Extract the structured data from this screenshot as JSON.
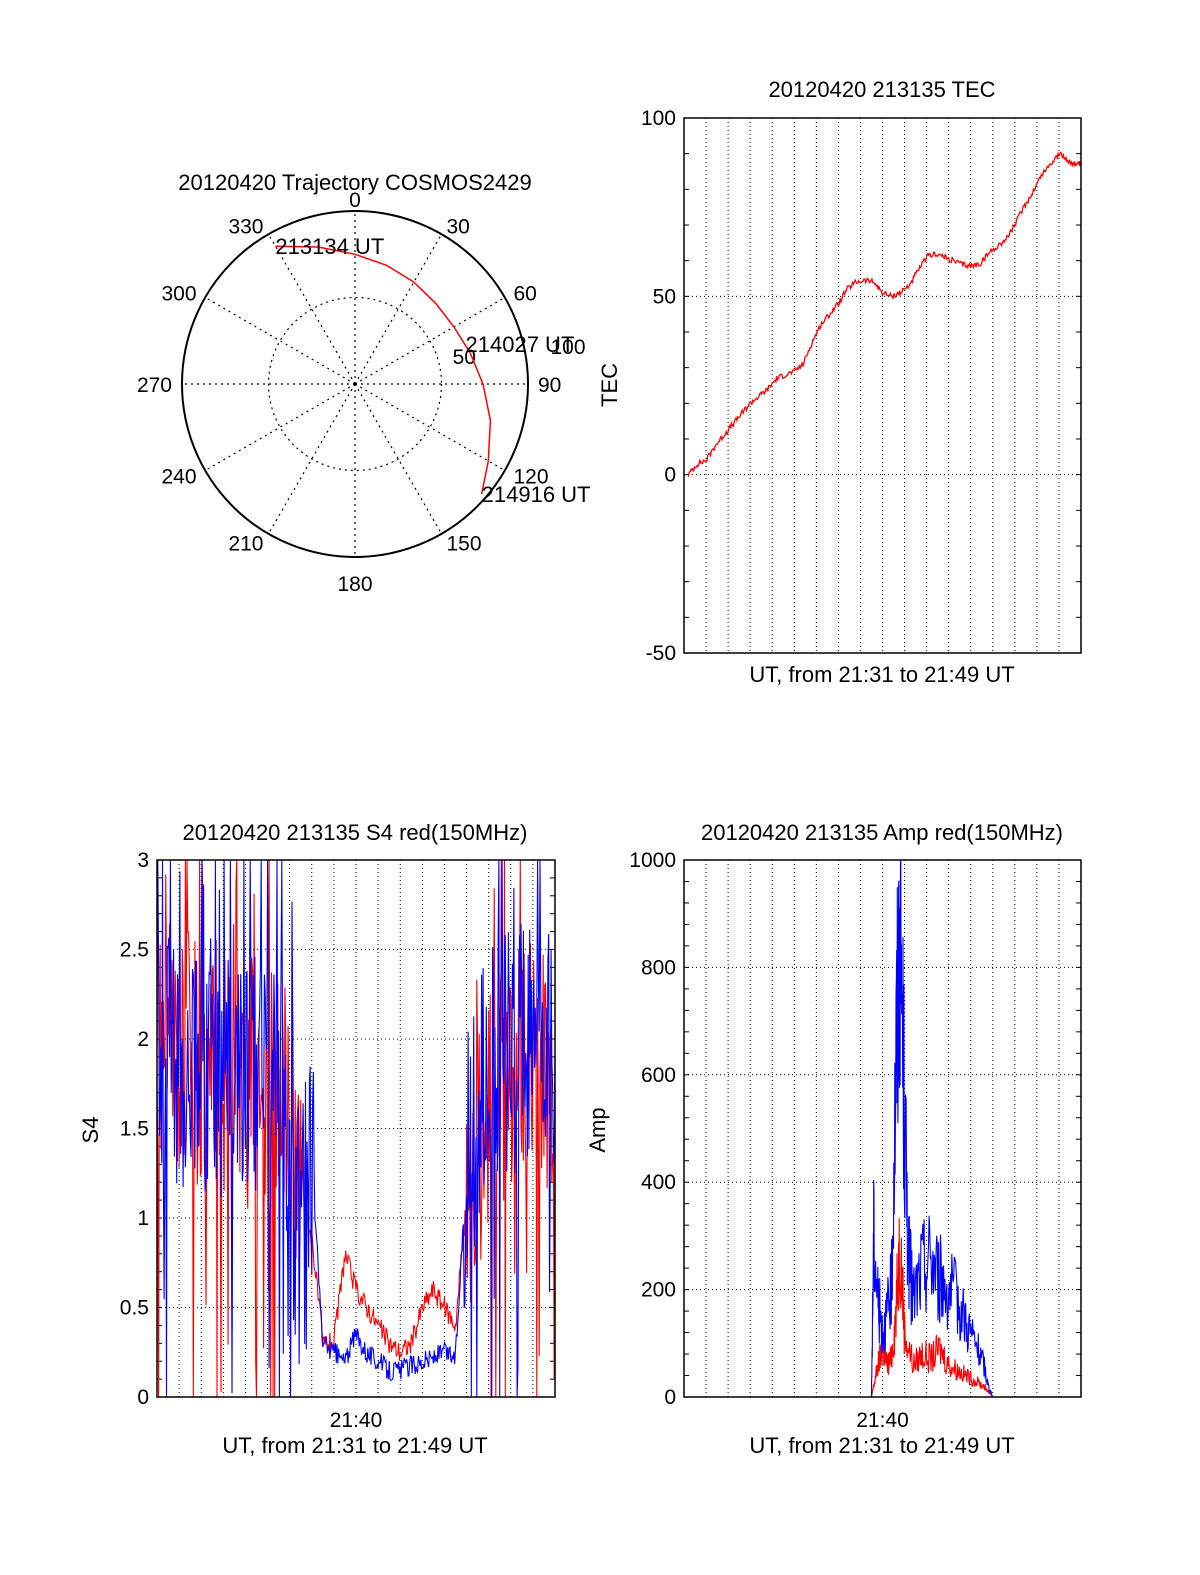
{
  "chart_data": [
    {
      "type": "polar",
      "id": "trajectory",
      "title": "20120420 Trajectory COSMOS2429",
      "angle_labels": [
        "0",
        "30",
        "60",
        "90",
        "120",
        "150",
        "180",
        "210",
        "240",
        "270",
        "300",
        "330"
      ],
      "radial_tick_labels": [
        "50",
        "100"
      ],
      "r_max": 100,
      "series": [
        {
          "color": "#ff0000",
          "points_az_zenith": [
            [
              330,
              92
            ],
            [
              345,
              82
            ],
            [
              0,
              75
            ],
            [
              15,
              71
            ],
            [
              30,
              68
            ],
            [
              45,
              66
            ],
            [
              60,
              66
            ],
            [
              75,
              69
            ],
            [
              90,
              74
            ],
            [
              105,
              81
            ],
            [
              120,
              89
            ],
            [
              131,
              97
            ]
          ]
        }
      ],
      "annotations": [
        {
          "text": "213134 UT",
          "az": 330,
          "zen": 92
        },
        {
          "text": "214027 UT",
          "az": 70,
          "zen": 68
        },
        {
          "text": "214916 UT",
          "az": 131,
          "zen": 97
        }
      ]
    },
    {
      "type": "line",
      "id": "tec",
      "title": "20120420 213135 TEC",
      "xlabel": "UT, from 21:31 to 21:49 UT",
      "ylabel": "TEC",
      "xlim": [
        0,
        18
      ],
      "ylim": [
        -50,
        100
      ],
      "yticks": [
        "-50",
        "0",
        "50",
        "100"
      ],
      "grid": true,
      "series": [
        {
          "color": "#ff0000",
          "x": [
            0.2,
            0.6,
            1.0,
            1.4,
            1.8,
            2.2,
            2.6,
            3.0,
            3.4,
            3.8,
            4.2,
            4.6,
            5.0,
            5.4,
            5.8,
            6.2,
            6.6,
            7.0,
            7.4,
            7.8,
            8.2,
            8.6,
            9.0,
            9.4,
            9.8,
            10.2,
            10.6,
            11.0,
            11.4,
            11.8,
            12.2,
            12.6,
            13.0,
            13.4,
            13.8,
            14.2,
            14.6,
            15.0,
            15.4,
            15.8,
            16.2,
            16.6,
            17.0,
            17.4,
            17.8,
            18.0
          ],
          "y": [
            0,
            3,
            4,
            8,
            11,
            14,
            17,
            20,
            22,
            24,
            27,
            28,
            29,
            31,
            37,
            42,
            45,
            48,
            52,
            54,
            54.5,
            54,
            51,
            50,
            51,
            53,
            57,
            61,
            62,
            61,
            60,
            59,
            58.5,
            59,
            62,
            64,
            66,
            70,
            75,
            79,
            84,
            87,
            90,
            88,
            87,
            87
          ]
        }
      ]
    },
    {
      "type": "line",
      "id": "s4",
      "title": "20120420 213135 S4 red(150MHz)",
      "xlabel": "UT, from 21:31 to 21:49 UT",
      "ylabel": "S4",
      "xlim": [
        0,
        18
      ],
      "ylim": [
        0,
        3
      ],
      "xticks": [
        "21:40"
      ],
      "yticks": [
        "0",
        "0.5",
        "1",
        "1.5",
        "2",
        "2.5",
        "3"
      ],
      "grid": true,
      "series": [
        {
          "color": "#ff0000",
          "x": [
            0.0,
            0.5,
            1.0,
            1.5,
            2.0,
            2.5,
            3.0,
            3.5,
            4.0,
            4.5,
            5.0,
            5.5,
            6.0,
            6.5,
            7.0,
            7.5,
            8.0,
            8.5,
            9.0,
            9.5,
            10.0,
            10.5,
            11.0,
            11.5,
            12.0,
            12.5,
            13.0,
            13.5,
            14.0,
            14.5,
            15.0,
            15.5,
            16.0,
            16.5,
            17.0,
            17.5,
            18.0
          ],
          "y": [
            1.8,
            2.0,
            1.9,
            2.1,
            1.7,
            1.9,
            1.8,
            2.0,
            1.7,
            1.9,
            1.8,
            1.6,
            1.7,
            1.1,
            0.9,
            0.3,
            0.3,
            0.8,
            0.6,
            0.5,
            0.4,
            0.3,
            0.25,
            0.3,
            0.5,
            0.6,
            0.5,
            0.4,
            1.1,
            1.4,
            1.6,
            1.7,
            1.9,
            1.9,
            2.0,
            1.8,
            1.9
          ]
        },
        {
          "color": "#0000ff",
          "x": [
            0.0,
            0.5,
            1.0,
            1.5,
            2.0,
            2.5,
            3.0,
            3.5,
            4.0,
            4.5,
            5.0,
            5.5,
            6.0,
            6.5,
            7.0,
            7.5,
            8.0,
            8.5,
            9.0,
            9.5,
            10.0,
            10.5,
            11.0,
            11.5,
            12.0,
            12.5,
            13.0,
            13.5,
            14.0,
            14.5,
            15.0,
            15.5,
            16.0,
            16.5,
            17.0,
            17.5,
            18.0
          ],
          "y": [
            1.7,
            1.9,
            1.8,
            2.0,
            1.8,
            1.9,
            1.7,
            1.9,
            1.8,
            1.8,
            1.7,
            1.7,
            1.6,
            1.5,
            1.3,
            0.3,
            0.25,
            0.2,
            0.35,
            0.25,
            0.2,
            0.15,
            0.15,
            0.18,
            0.2,
            0.22,
            0.25,
            0.22,
            1.3,
            1.6,
            1.8,
            1.9,
            1.9,
            2.0,
            2.0,
            2.0,
            1.9
          ]
        }
      ]
    },
    {
      "type": "line",
      "id": "amp",
      "title": "20120420 213135 Amp red(150MHz)",
      "xlabel": "UT, from 21:31 to 21:49 UT",
      "ylabel": "Amp",
      "xlim": [
        0,
        18
      ],
      "ylim": [
        0,
        1000
      ],
      "xticks": [
        "21:40"
      ],
      "yticks": [
        "0",
        "200",
        "400",
        "600",
        "800",
        "1000"
      ],
      "grid": true,
      "series": [
        {
          "color": "#ff0000",
          "x": [
            0,
            8.5,
            8.6,
            8.8,
            9.0,
            9.2,
            9.4,
            9.6,
            9.8,
            10.0,
            10.4,
            10.8,
            11.2,
            11.6,
            12.0,
            12.4,
            12.8,
            13.2,
            13.6,
            13.8,
            14.0,
            18.0
          ],
          "y": [
            0,
            0,
            20,
            60,
            90,
            60,
            70,
            150,
            300,
            120,
            60,
            80,
            70,
            90,
            60,
            50,
            40,
            30,
            20,
            10,
            0,
            0
          ]
        },
        {
          "color": "#0000ff",
          "x": [
            0,
            8.5,
            8.6,
            8.8,
            9.0,
            9.2,
            9.4,
            9.6,
            9.8,
            10.0,
            10.2,
            10.4,
            10.8,
            11.2,
            11.6,
            12.0,
            12.4,
            12.8,
            13.2,
            13.6,
            13.8,
            14.0,
            18.0
          ],
          "y": [
            0,
            0,
            300,
            180,
            120,
            150,
            200,
            600,
            900,
            500,
            250,
            180,
            240,
            260,
            220,
            200,
            180,
            140,
            100,
            60,
            20,
            0,
            0
          ]
        }
      ]
    }
  ]
}
